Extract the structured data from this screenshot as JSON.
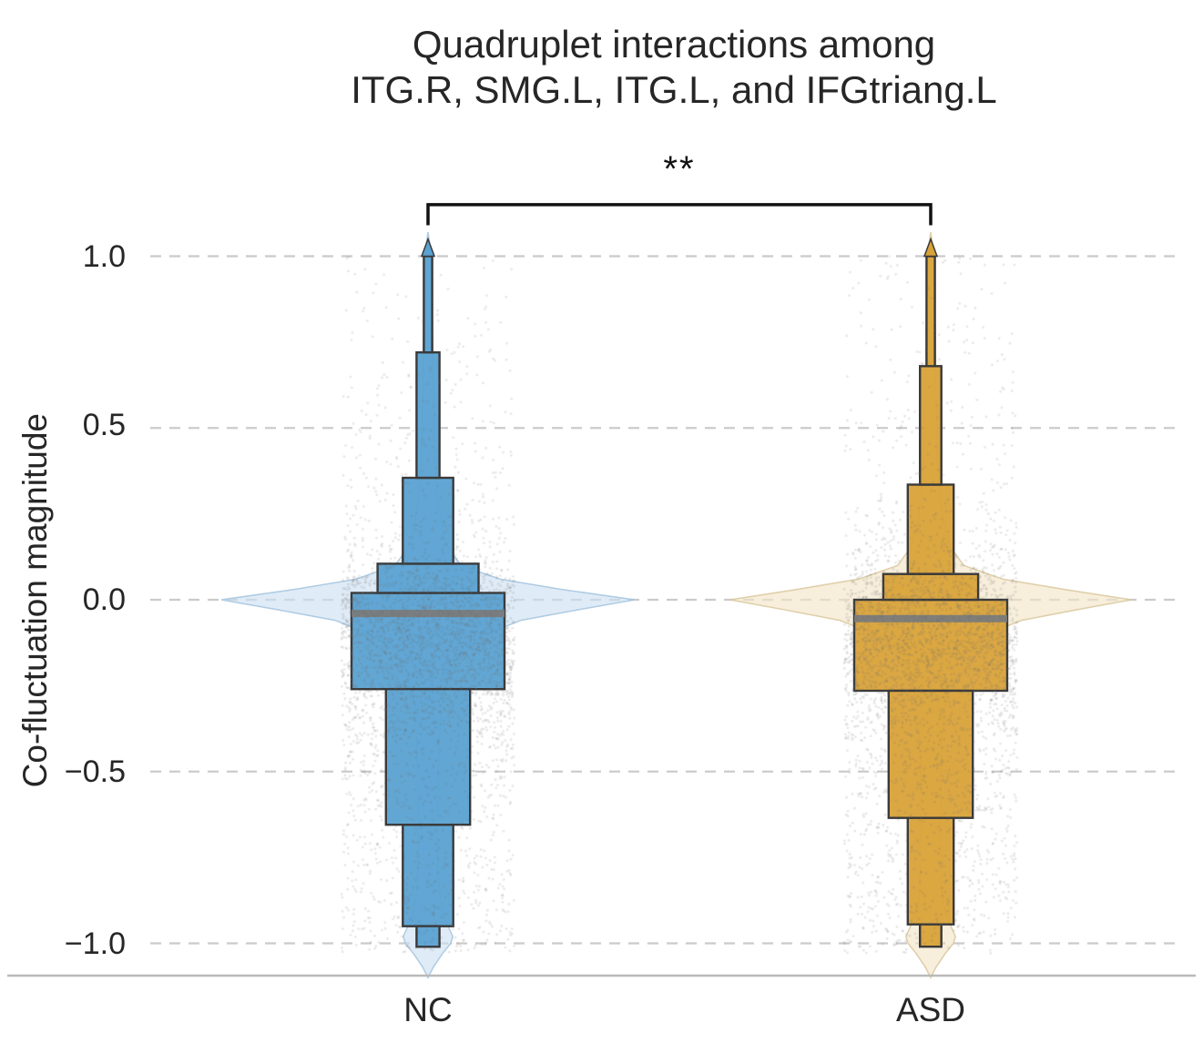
{
  "title": {
    "line1": "Quadruplet interactions among",
    "line2": "ITG.R, SMG.L, ITG.L, and IFGtriang.L"
  },
  "axes": {
    "ylabel": "Co-fluctuation magnitude",
    "yticks": [
      {
        "value": 1.0,
        "label": "1.0"
      },
      {
        "value": 0.5,
        "label": "0.5"
      },
      {
        "value": 0.0,
        "label": "0.0"
      },
      {
        "value": -0.5,
        "label": "−0.5"
      },
      {
        "value": -1.0,
        "label": "−1.0"
      }
    ],
    "xticks": [
      "NC",
      "ASD"
    ]
  },
  "chart_data": {
    "type": "violin+boxen+strip",
    "categories": [
      "NC",
      "ASD"
    ],
    "ylabel": "Co-fluctuation magnitude",
    "ylim": [
      -1.15,
      1.25
    ],
    "grid": "horizontal-dashed",
    "significance": {
      "pair": [
        "NC",
        "ASD"
      ],
      "label": "**",
      "y": 1.15,
      "drop": 0.06
    },
    "series": [
      {
        "name": "NC",
        "box_color": "#5AA2D2",
        "violin_color": "#CBDFF0",
        "violin_edge": "#A3C4DE",
        "median": -0.04,
        "boxes": [
          {
            "t": 0.02,
            "b": -0.26,
            "w": 1.0
          },
          {
            "t": 0.105,
            "b": 0.02,
            "w": 0.66
          },
          {
            "t": -0.26,
            "b": -0.655,
            "w": 0.55
          },
          {
            "t": 0.355,
            "b": 0.105,
            "w": 0.33
          },
          {
            "t": -0.655,
            "b": -0.95,
            "w": 0.33
          },
          {
            "t": 0.72,
            "b": 0.355,
            "w": 0.15
          },
          {
            "t": -0.95,
            "b": -1.01,
            "w": 0.15
          },
          {
            "t": 1.0,
            "b": 0.72,
            "w": 0.055
          }
        ],
        "violin_profile": [
          [
            1.07,
            0.0
          ],
          [
            1.02,
            0.012
          ],
          [
            1.0,
            0.018
          ],
          [
            0.9,
            0.02
          ],
          [
            0.8,
            0.022
          ],
          [
            0.7,
            0.024
          ],
          [
            0.6,
            0.027
          ],
          [
            0.5,
            0.03
          ],
          [
            0.4,
            0.035
          ],
          [
            0.3,
            0.045
          ],
          [
            0.2,
            0.07
          ],
          [
            0.15,
            0.1
          ],
          [
            0.1,
            0.16
          ],
          [
            0.06,
            0.35
          ],
          [
            0.03,
            0.65
          ],
          [
            0.0,
            1.0
          ],
          [
            -0.03,
            0.72
          ],
          [
            -0.06,
            0.45
          ],
          [
            -0.1,
            0.28
          ],
          [
            -0.15,
            0.16
          ],
          [
            -0.2,
            0.11
          ],
          [
            -0.3,
            0.07
          ],
          [
            -0.4,
            0.055
          ],
          [
            -0.5,
            0.05
          ],
          [
            -0.6,
            0.048
          ],
          [
            -0.7,
            0.047
          ],
          [
            -0.8,
            0.05
          ],
          [
            -0.88,
            0.06
          ],
          [
            -0.94,
            0.09
          ],
          [
            -0.98,
            0.12
          ],
          [
            -1.0,
            0.11
          ],
          [
            -1.03,
            0.07
          ],
          [
            -1.07,
            0.025
          ],
          [
            -1.1,
            0.0
          ]
        ]
      },
      {
        "name": "ASD",
        "box_color": "#D9A239",
        "violin_color": "#F2E4C5",
        "violin_edge": "#D9C79C",
        "median": -0.055,
        "boxes": [
          {
            "t": 0.0,
            "b": -0.265,
            "w": 1.0
          },
          {
            "t": 0.075,
            "b": 0.0,
            "w": 0.62
          },
          {
            "t": -0.265,
            "b": -0.635,
            "w": 0.55
          },
          {
            "t": 0.335,
            "b": 0.075,
            "w": 0.3
          },
          {
            "t": -0.635,
            "b": -0.945,
            "w": 0.3
          },
          {
            "t": 0.68,
            "b": 0.335,
            "w": 0.14
          },
          {
            "t": -0.945,
            "b": -1.01,
            "w": 0.14
          },
          {
            "t": 1.0,
            "b": 0.68,
            "w": 0.055
          }
        ],
        "violin_profile": [
          [
            1.07,
            0.0
          ],
          [
            1.02,
            0.012
          ],
          [
            1.0,
            0.018
          ],
          [
            0.9,
            0.02
          ],
          [
            0.8,
            0.022
          ],
          [
            0.7,
            0.024
          ],
          [
            0.6,
            0.027
          ],
          [
            0.5,
            0.03
          ],
          [
            0.4,
            0.035
          ],
          [
            0.3,
            0.045
          ],
          [
            0.2,
            0.07
          ],
          [
            0.15,
            0.1
          ],
          [
            0.1,
            0.16
          ],
          [
            0.06,
            0.35
          ],
          [
            0.03,
            0.65
          ],
          [
            0.0,
            0.97
          ],
          [
            -0.03,
            0.7
          ],
          [
            -0.06,
            0.44
          ],
          [
            -0.1,
            0.27
          ],
          [
            -0.15,
            0.16
          ],
          [
            -0.2,
            0.11
          ],
          [
            -0.3,
            0.07
          ],
          [
            -0.4,
            0.055
          ],
          [
            -0.5,
            0.05
          ],
          [
            -0.6,
            0.048
          ],
          [
            -0.7,
            0.047
          ],
          [
            -0.8,
            0.05
          ],
          [
            -0.88,
            0.06
          ],
          [
            -0.94,
            0.09
          ],
          [
            -0.98,
            0.12
          ],
          [
            -1.0,
            0.11
          ],
          [
            -1.03,
            0.07
          ],
          [
            -1.07,
            0.025
          ],
          [
            -1.1,
            0.0
          ]
        ]
      }
    ]
  }
}
